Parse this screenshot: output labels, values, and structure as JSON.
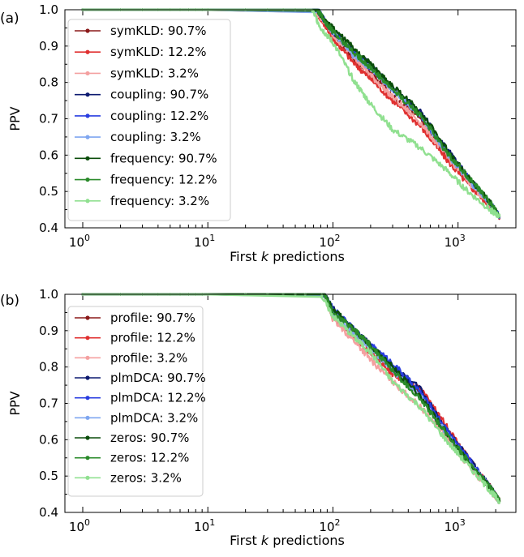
{
  "chart_data": [
    {
      "type": "line",
      "panel_label": "(a)",
      "xlabel_prefix": "First ",
      "xlabel_var": "k",
      "xlabel_suffix": " predictions",
      "ylabel": "PPV",
      "xscale": "log",
      "xlim": [
        0.72,
        2900
      ],
      "ylim": [
        0.4,
        1.0
      ],
      "yticks": [
        0.4,
        0.5,
        0.6,
        0.7,
        0.8,
        0.9,
        1.0
      ],
      "ytick_labels": [
        "0.4",
        "0.5",
        "0.6",
        "0.7",
        "0.8",
        "0.9",
        "1.0"
      ],
      "xticks": [
        1,
        10,
        100,
        1000
      ],
      "xtick_labels": [
        {
          "base": "10",
          "exp": "0"
        },
        {
          "base": "10",
          "exp": "1"
        },
        {
          "base": "10",
          "exp": "2"
        },
        {
          "base": "10",
          "exp": "3"
        }
      ],
      "legend_position": "upper-left",
      "series": [
        {
          "name": "symKLD: 90.7%",
          "color": "#8b1a1a",
          "points": [
            [
              1,
              1.0
            ],
            [
              75,
              1.0
            ],
            [
              90,
              0.95
            ],
            [
              100,
              0.93
            ],
            [
              150,
              0.86
            ],
            [
              200,
              0.83
            ],
            [
              300,
              0.76
            ],
            [
              500,
              0.7
            ],
            [
              800,
              0.6
            ],
            [
              1200,
              0.53
            ],
            [
              1800,
              0.46
            ],
            [
              2150,
              0.43
            ]
          ]
        },
        {
          "name": "symKLD: 12.2%",
          "color": "#e03030",
          "points": [
            [
              1,
              1.0
            ],
            [
              70,
              1.0
            ],
            [
              90,
              0.95
            ],
            [
              100,
              0.92
            ],
            [
              150,
              0.85
            ],
            [
              200,
              0.81
            ],
            [
              300,
              0.75
            ],
            [
              500,
              0.68
            ],
            [
              800,
              0.59
            ],
            [
              1200,
              0.52
            ],
            [
              1800,
              0.46
            ],
            [
              2150,
              0.43
            ]
          ]
        },
        {
          "name": "symKLD: 3.2%",
          "color": "#f4a0a0",
          "points": [
            [
              1,
              1.0
            ],
            [
              70,
              1.0
            ],
            [
              90,
              0.96
            ],
            [
              100,
              0.93
            ],
            [
              150,
              0.87
            ],
            [
              200,
              0.82
            ],
            [
              300,
              0.76
            ],
            [
              500,
              0.69
            ],
            [
              800,
              0.6
            ],
            [
              1200,
              0.53
            ],
            [
              1800,
              0.46
            ],
            [
              2150,
              0.43
            ]
          ]
        },
        {
          "name": "coupling: 90.7%",
          "color": "#0d1a70",
          "points": [
            [
              1,
              1.0
            ],
            [
              75,
              1.0
            ],
            [
              90,
              0.96
            ],
            [
              100,
              0.94
            ],
            [
              150,
              0.88
            ],
            [
              200,
              0.85
            ],
            [
              300,
              0.78
            ],
            [
              500,
              0.72
            ],
            [
              800,
              0.62
            ],
            [
              1200,
              0.54
            ],
            [
              1800,
              0.47
            ],
            [
              2150,
              0.43
            ]
          ]
        },
        {
          "name": "coupling: 12.2%",
          "color": "#2a3ee0",
          "points": [
            [
              1,
              1.0
            ],
            [
              75,
              1.0
            ],
            [
              90,
              0.96
            ],
            [
              100,
              0.94
            ],
            [
              150,
              0.88
            ],
            [
              200,
              0.84
            ],
            [
              300,
              0.78
            ],
            [
              500,
              0.71
            ],
            [
              800,
              0.61
            ],
            [
              1200,
              0.54
            ],
            [
              1800,
              0.47
            ],
            [
              2150,
              0.43
            ]
          ]
        },
        {
          "name": "coupling: 3.2%",
          "color": "#7fa6f0",
          "points": [
            [
              1,
              1.0
            ],
            [
              75,
              1.0
            ],
            [
              90,
              0.96
            ],
            [
              100,
              0.94
            ],
            [
              150,
              0.87
            ],
            [
              200,
              0.84
            ],
            [
              300,
              0.78
            ],
            [
              500,
              0.71
            ],
            [
              800,
              0.61
            ],
            [
              1200,
              0.53
            ],
            [
              1800,
              0.47
            ],
            [
              2150,
              0.43
            ]
          ]
        },
        {
          "name": "frequency: 90.7%",
          "color": "#0b4d0b",
          "points": [
            [
              1,
              1.0
            ],
            [
              75,
              1.0
            ],
            [
              90,
              0.96
            ],
            [
              100,
              0.95
            ],
            [
              150,
              0.89
            ],
            [
              200,
              0.85
            ],
            [
              300,
              0.79
            ],
            [
              500,
              0.72
            ],
            [
              800,
              0.62
            ],
            [
              1200,
              0.54
            ],
            [
              1800,
              0.47
            ],
            [
              2150,
              0.43
            ]
          ]
        },
        {
          "name": "frequency: 12.2%",
          "color": "#2a8a2a",
          "points": [
            [
              1,
              1.0
            ],
            [
              75,
              1.0
            ],
            [
              90,
              0.96
            ],
            [
              100,
              0.94
            ],
            [
              150,
              0.88
            ],
            [
              200,
              0.84
            ],
            [
              300,
              0.78
            ],
            [
              500,
              0.71
            ],
            [
              800,
              0.61
            ],
            [
              1200,
              0.54
            ],
            [
              1800,
              0.47
            ],
            [
              2150,
              0.43
            ]
          ]
        },
        {
          "name": "frequency: 3.2%",
          "color": "#90e090",
          "points": [
            [
              1,
              1.0
            ],
            [
              68,
              1.0
            ],
            [
              80,
              0.95
            ],
            [
              100,
              0.91
            ],
            [
              150,
              0.8
            ],
            [
              200,
              0.74
            ],
            [
              300,
              0.67
            ],
            [
              500,
              0.62
            ],
            [
              800,
              0.56
            ],
            [
              1200,
              0.5
            ],
            [
              1800,
              0.45
            ],
            [
              2150,
              0.43
            ]
          ]
        }
      ]
    },
    {
      "type": "line",
      "panel_label": "(b)",
      "xlabel_prefix": "First ",
      "xlabel_var": "k",
      "xlabel_suffix": " predictions",
      "ylabel": "PPV",
      "xscale": "log",
      "xlim": [
        0.72,
        2900
      ],
      "ylim": [
        0.4,
        1.0
      ],
      "yticks": [
        0.4,
        0.5,
        0.6,
        0.7,
        0.8,
        0.9,
        1.0
      ],
      "ytick_labels": [
        "0.4",
        "0.5",
        "0.6",
        "0.7",
        "0.8",
        "0.9",
        "1.0"
      ],
      "xticks": [
        1,
        10,
        100,
        1000
      ],
      "xtick_labels": [
        {
          "base": "10",
          "exp": "0"
        },
        {
          "base": "10",
          "exp": "1"
        },
        {
          "base": "10",
          "exp": "2"
        },
        {
          "base": "10",
          "exp": "3"
        }
      ],
      "legend_position": "upper-left",
      "series": [
        {
          "name": "profile: 90.7%",
          "color": "#8b1a1a",
          "points": [
            [
              1,
              1.0
            ],
            [
              85,
              1.0
            ],
            [
              100,
              0.95
            ],
            [
              150,
              0.89
            ],
            [
              200,
              0.85
            ],
            [
              300,
              0.79
            ],
            [
              500,
              0.73
            ],
            [
              800,
              0.63
            ],
            [
              1200,
              0.55
            ],
            [
              1800,
              0.47
            ],
            [
              2150,
              0.43
            ]
          ]
        },
        {
          "name": "profile: 12.2%",
          "color": "#e03030",
          "points": [
            [
              1,
              1.0
            ],
            [
              85,
              1.0
            ],
            [
              100,
              0.94
            ],
            [
              150,
              0.88
            ],
            [
              200,
              0.84
            ],
            [
              300,
              0.78
            ],
            [
              500,
              0.74
            ],
            [
              800,
              0.64
            ],
            [
              1200,
              0.55
            ],
            [
              1800,
              0.47
            ],
            [
              2150,
              0.43
            ]
          ]
        },
        {
          "name": "profile: 3.2%",
          "color": "#f4a0a0",
          "points": [
            [
              1,
              1.0
            ],
            [
              85,
              1.0
            ],
            [
              100,
              0.93
            ],
            [
              150,
              0.87
            ],
            [
              200,
              0.82
            ],
            [
              300,
              0.76
            ],
            [
              500,
              0.69
            ],
            [
              800,
              0.61
            ],
            [
              1200,
              0.53
            ],
            [
              1800,
              0.46
            ],
            [
              2150,
              0.43
            ]
          ]
        },
        {
          "name": "plmDCA: 90.7%",
          "color": "#0d1a70",
          "points": [
            [
              1,
              1.0
            ],
            [
              85,
              1.0
            ],
            [
              100,
              0.96
            ],
            [
              150,
              0.9
            ],
            [
              200,
              0.86
            ],
            [
              300,
              0.8
            ],
            [
              500,
              0.74
            ],
            [
              800,
              0.63
            ],
            [
              1200,
              0.55
            ],
            [
              1800,
              0.47
            ],
            [
              2150,
              0.43
            ]
          ]
        },
        {
          "name": "plmDCA: 12.2%",
          "color": "#2a3ee0",
          "points": [
            [
              1,
              1.0
            ],
            [
              85,
              1.0
            ],
            [
              100,
              0.96
            ],
            [
              150,
              0.9
            ],
            [
              200,
              0.86
            ],
            [
              300,
              0.81
            ],
            [
              500,
              0.73
            ],
            [
              800,
              0.63
            ],
            [
              1200,
              0.55
            ],
            [
              1800,
              0.47
            ],
            [
              2150,
              0.43
            ]
          ]
        },
        {
          "name": "plmDCA: 3.2%",
          "color": "#7fa6f0",
          "points": [
            [
              1,
              1.0
            ],
            [
              85,
              1.0
            ],
            [
              100,
              0.95
            ],
            [
              150,
              0.89
            ],
            [
              200,
              0.85
            ],
            [
              300,
              0.79
            ],
            [
              500,
              0.72
            ],
            [
              800,
              0.62
            ],
            [
              1200,
              0.54
            ],
            [
              1800,
              0.47
            ],
            [
              2150,
              0.43
            ]
          ]
        },
        {
          "name": "zeros: 90.7%",
          "color": "#0b4d0b",
          "points": [
            [
              1,
              1.0
            ],
            [
              85,
              1.0
            ],
            [
              100,
              0.96
            ],
            [
              150,
              0.9
            ],
            [
              200,
              0.86
            ],
            [
              300,
              0.8
            ],
            [
              500,
              0.72
            ],
            [
              800,
              0.62
            ],
            [
              1200,
              0.54
            ],
            [
              1800,
              0.47
            ],
            [
              2150,
              0.43
            ]
          ]
        },
        {
          "name": "zeros: 12.2%",
          "color": "#2a8a2a",
          "points": [
            [
              1,
              1.0
            ],
            [
              85,
              1.0
            ],
            [
              100,
              0.95
            ],
            [
              150,
              0.9
            ],
            [
              200,
              0.86
            ],
            [
              300,
              0.79
            ],
            [
              500,
              0.71
            ],
            [
              800,
              0.62
            ],
            [
              1200,
              0.54
            ],
            [
              1800,
              0.47
            ],
            [
              2150,
              0.43
            ]
          ]
        },
        {
          "name": "zeros: 3.2%",
          "color": "#90e090",
          "points": [
            [
              1,
              1.0
            ],
            [
              80,
              1.0
            ],
            [
              100,
              0.94
            ],
            [
              150,
              0.88
            ],
            [
              200,
              0.84
            ],
            [
              300,
              0.76
            ],
            [
              500,
              0.69
            ],
            [
              800,
              0.6
            ],
            [
              1200,
              0.53
            ],
            [
              1800,
              0.46
            ],
            [
              2150,
              0.43
            ]
          ]
        }
      ]
    }
  ]
}
